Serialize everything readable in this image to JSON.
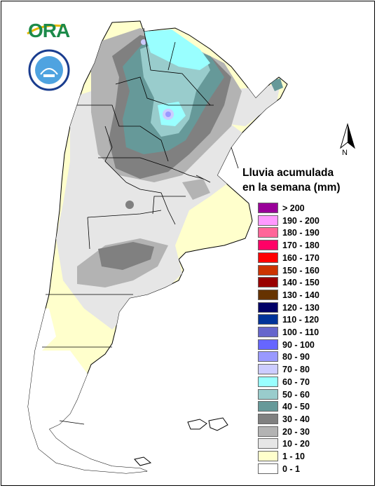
{
  "logo": {
    "text": "ORA",
    "icon": "ora-logo-icon"
  },
  "seal": {
    "icon": "smn-seal-icon",
    "text": ""
  },
  "north_arrow": {
    "label": "N",
    "icon": "north-arrow-icon"
  },
  "legend": {
    "title_line1": "Lluvia acumulada",
    "title_line2": "en la semana (mm)",
    "items": [
      {
        "label": "> 200",
        "color": "#990099"
      },
      {
        "label": "190 - 200",
        "color": "#ff99ff"
      },
      {
        "label": "180 - 190",
        "color": "#ff6699"
      },
      {
        "label": "170 - 180",
        "color": "#ff0066"
      },
      {
        "label": "160 - 170",
        "color": "#ff0000"
      },
      {
        "label": "150 - 160",
        "color": "#cc3300"
      },
      {
        "label": "140 - 150",
        "color": "#990000"
      },
      {
        "label": "130 - 140",
        "color": "#663300"
      },
      {
        "label": "120 - 130",
        "color": "#000066"
      },
      {
        "label": "110 - 120",
        "color": "#003399"
      },
      {
        "label": "100 - 110",
        "color": "#6666cc"
      },
      {
        "label": "90 - 100",
        "color": "#6666ff"
      },
      {
        "label": "80 - 90",
        "color": "#9999ff"
      },
      {
        "label": "70 - 80",
        "color": "#ccccff"
      },
      {
        "label": "60 - 70",
        "color": "#99ffff"
      },
      {
        "label": "50 - 60",
        "color": "#99cccc"
      },
      {
        "label": "40 - 50",
        "color": "#669999"
      },
      {
        "label": "30 - 40",
        "color": "#808080"
      },
      {
        "label": "20 - 30",
        "color": "#b3b3b3"
      },
      {
        "label": "10 - 20",
        "color": "#e6e6e6"
      },
      {
        "label": "1 - 10",
        "color": "#ffffcc"
      },
      {
        "label": "0 - 1",
        "color": "#ffffff"
      }
    ]
  }
}
